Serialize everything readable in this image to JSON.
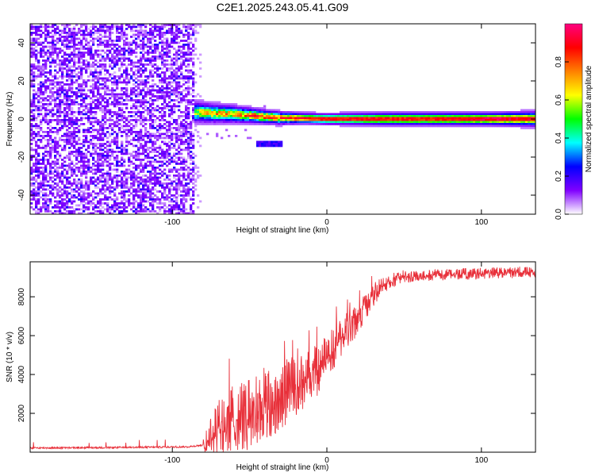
{
  "title": "C2E1.2025.243.05.41.G09",
  "chart_data": [
    {
      "type": "heatmap",
      "xlabel": "Height of straight line (km)",
      "ylabel": "Frequency (Hz)",
      "xlim": [
        -192,
        135
      ],
      "ylim": [
        -50,
        50
      ],
      "xticks": [
        -100,
        0,
        100
      ],
      "yticks": [
        -40,
        -20,
        0,
        20,
        40
      ],
      "colorbar": {
        "label": "Normalized spectral amplitude",
        "range": [
          0,
          1
        ],
        "ticks": [
          "0.0",
          "0.2",
          "0.4",
          "0.6",
          "0.8"
        ],
        "colors": [
          "#ffffff",
          "#8000ff",
          "#0000ff",
          "#00ffff",
          "#00ff00",
          "#ffff00",
          "#ff8000",
          "#ff0000",
          "#ff0080"
        ]
      },
      "noise_region": {
        "x_from": -192,
        "x_to": -85,
        "max_amplitude": 0.15
      },
      "signal_band": [
        {
          "x": -85,
          "center": 3.5,
          "halfwidth": 5,
          "amplitude": 0.55
        },
        {
          "x": -75,
          "center": 3,
          "halfwidth": 4.5,
          "amplitude": 0.6
        },
        {
          "x": -60,
          "center": 2.5,
          "halfwidth": 4,
          "amplitude": 0.65
        },
        {
          "x": -45,
          "center": 1.5,
          "halfwidth": 3.5,
          "amplitude": 0.75
        },
        {
          "x": -30,
          "center": 0.5,
          "halfwidth": 3,
          "amplitude": 0.8
        },
        {
          "x": -15,
          "center": 0.3,
          "halfwidth": 2.5,
          "amplitude": 0.85
        },
        {
          "x": 0,
          "center": 0,
          "halfwidth": 2.5,
          "amplitude": 0.9
        },
        {
          "x": 40,
          "center": 0,
          "halfwidth": 3,
          "amplitude": 0.85
        },
        {
          "x": 80,
          "center": 0,
          "halfwidth": 3,
          "amplitude": 0.85
        },
        {
          "x": 105,
          "center": 0,
          "halfwidth": 3,
          "amplitude": 0.95
        },
        {
          "x": 135,
          "center": 0,
          "halfwidth": 3.5,
          "amplitude": 0.85
        }
      ],
      "spur": {
        "x_from": -45,
        "x_to": -28,
        "center": -13,
        "amplitude": 0.25
      }
    },
    {
      "type": "line",
      "xlabel": "Height of straight line (km)",
      "ylabel": "SNR (10 * v/v)",
      "xlim": [
        -192,
        135
      ],
      "ylim": [
        0,
        9800
      ],
      "xticks": [
        -100,
        0,
        100
      ],
      "yticks": [
        2000,
        4000,
        6000,
        8000
      ],
      "color": "#e8303a",
      "series": [
        {
          "name": "baseline",
          "x": [
            -192,
            -140,
            -90,
            -80
          ],
          "y": [
            200,
            220,
            260,
            350
          ]
        },
        {
          "name": "envelope_mean",
          "x": [
            -80,
            -70,
            -60,
            -50,
            -40,
            -30,
            -20,
            -10,
            0,
            10,
            20,
            30,
            40,
            50,
            60,
            80,
            100,
            120,
            135
          ],
          "y": [
            350,
            1200,
            1600,
            2000,
            2300,
            2800,
            3300,
            3900,
            4800,
            5900,
            7000,
            8100,
            8800,
            9050,
            9100,
            9150,
            9200,
            9250,
            9300
          ]
        },
        {
          "name": "envelope_spread",
          "x": [
            -80,
            -70,
            -60,
            -50,
            -40,
            -30,
            -20,
            -10,
            0,
            10,
            20,
            30,
            40,
            50,
            60,
            80,
            100,
            120,
            135
          ],
          "y": [
            300,
            1800,
            1800,
            1900,
            1900,
            1700,
            1500,
            1400,
            1300,
            1100,
            900,
            600,
            400,
            350,
            300,
            300,
            300,
            300,
            300
          ]
        }
      ]
    }
  ]
}
